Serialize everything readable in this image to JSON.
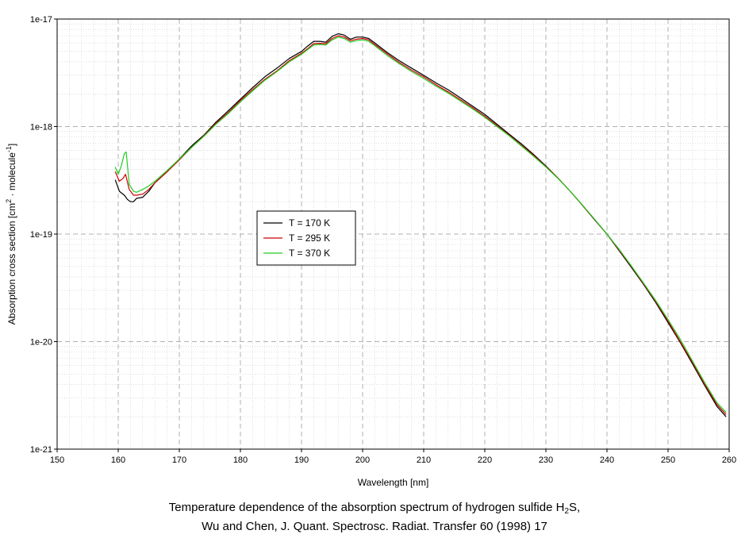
{
  "chart_data": {
    "type": "line",
    "xlabel": "Wavelength [nm]",
    "ylabel": {
      "main": "Absorption cross section [cm",
      "sup1": "2",
      "mid": " · molecule",
      "sup2": "-1",
      "end": "]"
    },
    "xlim": [
      150,
      260
    ],
    "ylim": [
      1e-21,
      1e-17
    ],
    "y_scale": "log",
    "grid": true,
    "legend_position": "center-left",
    "x_ticks": [
      150,
      160,
      170,
      180,
      190,
      200,
      210,
      220,
      230,
      240,
      250,
      260
    ],
    "x_tick_labels": [
      "150",
      "160",
      "170",
      "180",
      "190",
      "200",
      "210",
      "220",
      "230",
      "240",
      "250",
      "260"
    ],
    "y_ticks": [
      1e-21,
      1e-20,
      1e-19,
      1e-18,
      1e-17
    ],
    "y_tick_labels": [
      "1e-21",
      "1e-20",
      "1e-19",
      "1e-18",
      "1e-17"
    ],
    "series": [
      {
        "name": "T = 170 K",
        "color": "#000000",
        "x": [
          159.5,
          160.2,
          161.0,
          161.5,
          162.0,
          162.5,
          163.0,
          164.0,
          165.0,
          166.0,
          168.0,
          170.0,
          172.0,
          174.0,
          176.0,
          178.0,
          180.0,
          182.0,
          184.0,
          186.0,
          188.0,
          190.0,
          191.0,
          192.0,
          193.0,
          194.0,
          195.0,
          196.0,
          197.0,
          198.0,
          199.0,
          200.0,
          201.0,
          202.0,
          204.0,
          206.0,
          208.0,
          210.0,
          212.0,
          214.0,
          216.0,
          218.0,
          220.0,
          222.0,
          224.0,
          226.0,
          228.0,
          230.0,
          232.0,
          234.0,
          236.0,
          238.0,
          240.0,
          242.0,
          244.0,
          246.0,
          248.0,
          250.0,
          252.0,
          254.0,
          256.0,
          258.0,
          259.5
        ],
        "y": [
          3.2e-19,
          2.5e-19,
          2.3e-19,
          2.1e-19,
          2e-19,
          2e-19,
          2.15e-19,
          2.2e-19,
          2.5e-19,
          3e-19,
          3.8e-19,
          5e-19,
          6.6e-19,
          8.3e-19,
          1.1e-18,
          1.4e-18,
          1.8e-18,
          2.3e-18,
          2.9e-18,
          3.5e-18,
          4.3e-18,
          5e-18,
          5.6e-18,
          6.2e-18,
          6.2e-18,
          6.1e-18,
          6.9e-18,
          7.3e-18,
          7.1e-18,
          6.5e-18,
          6.8e-18,
          6.8e-18,
          6.6e-18,
          6e-18,
          4.9e-18,
          4.1e-18,
          3.5e-18,
          3e-18,
          2.55e-18,
          2.2e-18,
          1.85e-18,
          1.55e-18,
          1.3e-18,
          1.05e-18,
          8.5e-19,
          6.9e-19,
          5.5e-19,
          4.3e-19,
          3.3e-19,
          2.5e-19,
          1.85e-19,
          1.35e-19,
          1e-19,
          7e-20,
          4.9e-20,
          3.4e-20,
          2.3e-20,
          1.5e-20,
          9.8e-21,
          6.2e-21,
          3.9e-21,
          2.5e-21,
          2e-21
        ]
      },
      {
        "name": "T = 295 K",
        "color": "#cc0000",
        "x": [
          159.5,
          160.2,
          160.8,
          161.2,
          161.8,
          162.5,
          163.0,
          164.0,
          165.0,
          166.0,
          168.0,
          170.0,
          172.0,
          174.0,
          176.0,
          178.0,
          180.0,
          182.0,
          184.0,
          186.0,
          188.0,
          190.0,
          191.0,
          192.0,
          193.0,
          194.0,
          195.0,
          196.0,
          197.0,
          198.0,
          199.0,
          200.0,
          201.0,
          202.0,
          204.0,
          206.0,
          208.0,
          210.0,
          212.0,
          214.0,
          216.0,
          218.0,
          220.0,
          222.0,
          224.0,
          226.0,
          228.0,
          230.0,
          232.0,
          234.0,
          236.0,
          238.0,
          240.0,
          242.0,
          244.0,
          246.0,
          248.0,
          250.0,
          252.0,
          254.0,
          256.0,
          258.0,
          259.5
        ],
        "y": [
          3.8e-19,
          3.1e-19,
          3.3e-19,
          3.6e-19,
          2.6e-19,
          2.3e-19,
          2.3e-19,
          2.35e-19,
          2.6e-19,
          3e-19,
          3.8e-19,
          4.9e-19,
          6.4e-19,
          8.2e-19,
          1.07e-18,
          1.35e-18,
          1.75e-18,
          2.2e-18,
          2.75e-18,
          3.3e-18,
          4.1e-18,
          4.8e-18,
          5.3e-18,
          5.9e-18,
          5.95e-18,
          5.9e-18,
          6.6e-18,
          7e-18,
          6.8e-18,
          6.3e-18,
          6.5e-18,
          6.6e-18,
          6.4e-18,
          5.8e-18,
          4.75e-18,
          3.95e-18,
          3.35e-18,
          2.9e-18,
          2.45e-18,
          2.1e-18,
          1.78e-18,
          1.5e-18,
          1.25e-18,
          1.02e-18,
          8.3e-19,
          6.7e-19,
          5.4e-19,
          4.25e-19,
          3.3e-19,
          2.5e-19,
          1.85e-19,
          1.36e-19,
          1e-19,
          7.1e-20,
          5e-20,
          3.45e-20,
          2.35e-20,
          1.55e-20,
          1e-20,
          6.4e-21,
          4e-21,
          2.6e-21,
          2.1e-21
        ]
      },
      {
        "name": "T = 370 K",
        "color": "#22cc22",
        "x": [
          159.5,
          160.0,
          160.5,
          161.0,
          161.3,
          161.8,
          162.5,
          163.0,
          164.0,
          165.0,
          166.0,
          168.0,
          170.0,
          172.0,
          174.0,
          176.0,
          178.0,
          180.0,
          182.0,
          184.0,
          186.0,
          188.0,
          190.0,
          191.0,
          192.0,
          193.0,
          194.0,
          195.0,
          196.0,
          197.0,
          198.0,
          199.0,
          200.0,
          201.0,
          202.0,
          204.0,
          206.0,
          208.0,
          210.0,
          212.0,
          214.0,
          216.0,
          218.0,
          220.0,
          222.0,
          224.0,
          226.0,
          228.0,
          230.0,
          232.0,
          234.0,
          236.0,
          238.0,
          240.0,
          242.0,
          244.0,
          246.0,
          248.0,
          250.0,
          252.0,
          254.0,
          256.0,
          258.0,
          259.5
        ],
        "y": [
          4.2e-19,
          3.6e-19,
          4.3e-19,
          5.6e-19,
          5.8e-19,
          2.9e-19,
          2.5e-19,
          2.45e-19,
          2.6e-19,
          2.8e-19,
          3.1e-19,
          3.9e-19,
          5e-19,
          6.4e-19,
          8.1e-19,
          1.05e-18,
          1.32e-18,
          1.7e-18,
          2.15e-18,
          2.7e-18,
          3.25e-18,
          4e-18,
          4.7e-18,
          5.2e-18,
          5.75e-18,
          5.8e-18,
          5.75e-18,
          6.4e-18,
          6.8e-18,
          6.6e-18,
          6.1e-18,
          6.3e-18,
          6.4e-18,
          6.2e-18,
          5.65e-18,
          4.6e-18,
          3.85e-18,
          3.25e-18,
          2.8e-18,
          2.38e-18,
          2.05e-18,
          1.73e-18,
          1.46e-18,
          1.22e-18,
          1e-18,
          8.2e-19,
          6.6e-19,
          5.3e-19,
          4.2e-19,
          3.28e-19,
          2.5e-19,
          1.86e-19,
          1.37e-19,
          1e-19,
          7.2e-20,
          5.05e-20,
          3.5e-20,
          2.4e-20,
          1.6e-20,
          1.05e-20,
          6.6e-21,
          4.15e-21,
          2.7e-21,
          2.2e-21
        ]
      }
    ]
  },
  "caption": {
    "line1_pre": "Temperature dependence of the absorption spectrum of hydrogen sulfide H",
    "line1_sub": "2",
    "line1_post": "S,",
    "line2": "Wu and Chen, J. Quant. Spectrosc. Radiat. Transfer 60 (1998) 17"
  }
}
